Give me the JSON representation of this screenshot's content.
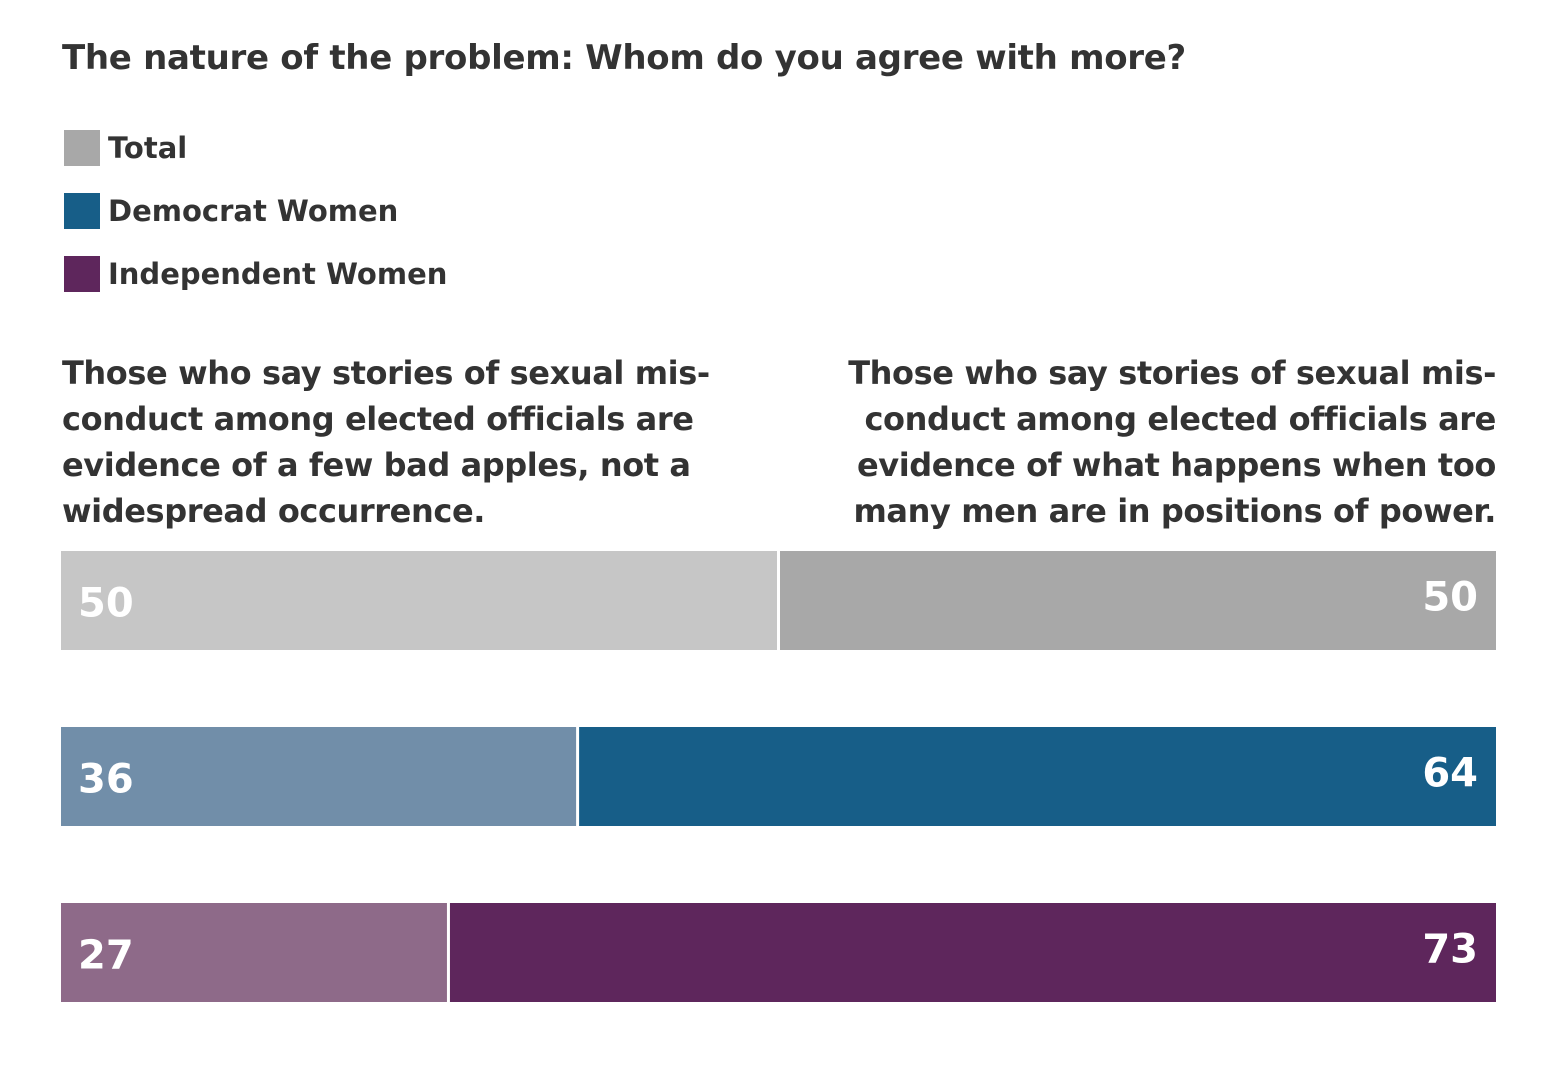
{
  "title": "The nature of the problem: Whom do you agree with more?",
  "legend": [
    {
      "label": "Total",
      "color": "#a8a8a8"
    },
    {
      "label": "Democrat Women",
      "color": "#175e88"
    },
    {
      "label": "Independent Women",
      "color": "#5e265c"
    }
  ],
  "left_label": [
    "Those who say stories of sexual mis-",
    "conduct among elected officials are",
    "evidence of a few bad apples, not a",
    "widespread occurrence."
  ],
  "right_label": [
    "Those who say stories of sexual mis-",
    "conduct among elected officials are",
    "evidence of what happens when too",
    "many men are in positions of power."
  ],
  "chart_data": {
    "type": "bar",
    "orientation": "horizontal",
    "stacked": true,
    "title": "The nature of the problem: Whom do you agree with more?",
    "categories": [
      "Total",
      "Democrat Women",
      "Independent Women"
    ],
    "series": [
      {
        "name": "Those who say stories of sexual misconduct among elected officials are evidence of a few bad apples, not a widespread occurrence.",
        "values": [
          50,
          36,
          27
        ],
        "colors": [
          "#c6c6c6",
          "#718ea9",
          "#8e6a89"
        ]
      },
      {
        "name": "Those who say stories of sexual misconduct among elected officials are evidence of what happens when too many men are in positions of power.",
        "values": [
          50,
          64,
          73
        ],
        "colors": [
          "#a8a8a8",
          "#175e88",
          "#5e265c"
        ]
      }
    ],
    "xlim": [
      0,
      100
    ],
    "grid": false,
    "legend_position": "top-left"
  }
}
